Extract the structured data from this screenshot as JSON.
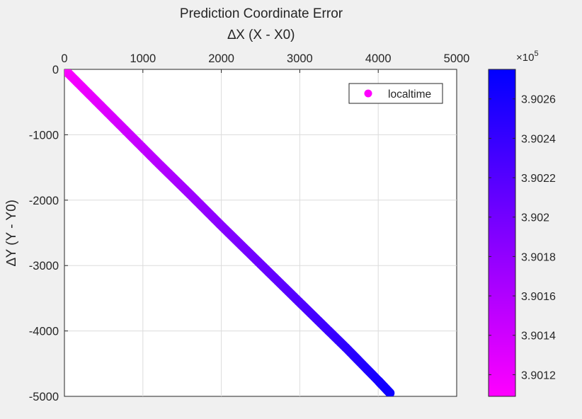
{
  "chart_data": {
    "type": "scatter",
    "title": "Prediction Coordinate Error",
    "xlabel": "∆X (X - X0)",
    "ylabel": "∆Y (Y - Y0)",
    "x_axis_location": "top",
    "y_direction": "reversed",
    "xlim": [
      0,
      5000
    ],
    "ylim": [
      -5000,
      0
    ],
    "xticks": [
      0,
      1000,
      2000,
      3000,
      4000,
      5000
    ],
    "xtick_labels": [
      "0",
      "1000",
      "2000",
      "3000",
      "4000",
      "5000"
    ],
    "yticks": [
      0,
      -1000,
      -2000,
      -3000,
      -4000,
      -5000
    ],
    "ytick_labels": [
      "0",
      "-1000",
      "-2000",
      "-3000",
      "-4000",
      "-5000"
    ],
    "grid": true,
    "legend": {
      "entries": [
        "localtime"
      ],
      "location": "top-right"
    },
    "series": [
      {
        "name": "localtime",
        "marker": "filled-circle",
        "x": [
          0,
          400,
          800,
          1200,
          1600,
          2000,
          2400,
          2800,
          3200,
          3600,
          4000,
          4150
        ],
        "y": [
          0,
          -480,
          -960,
          -1440,
          -1910,
          -2390,
          -2860,
          -3330,
          -3800,
          -4270,
          -4760,
          -4950
        ],
        "c": [
          390110,
          390125,
          390140,
          390155,
          390170,
          390185,
          390200,
          390215,
          390230,
          390245,
          390260,
          390266
        ]
      }
    ],
    "colorbar": {
      "range": [
        390109,
        390275
      ],
      "colors": [
        "#ff00ff",
        "#0000ff"
      ],
      "ticks": [
        390120,
        390140,
        390160,
        390180,
        390200,
        390220,
        390240,
        390260
      ],
      "tick_labels": [
        "3.9012",
        "3.9014",
        "3.9016",
        "3.9018",
        "3.902",
        "3.9022",
        "3.9024",
        "3.9026"
      ],
      "exponent_base": "×10",
      "exponent_power": "5"
    }
  }
}
